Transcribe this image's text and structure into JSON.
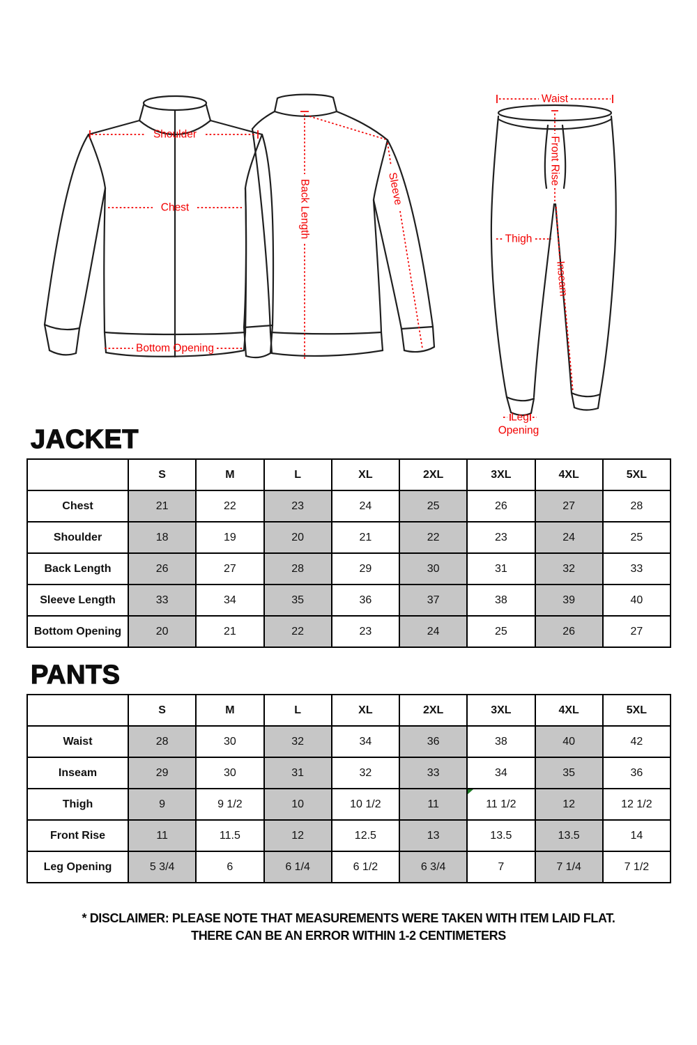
{
  "colors": {
    "measure_red": "#f20000",
    "outline_black": "#1f1f1f",
    "shaded_cell_gray": "#c6c6c6",
    "artifact_green": "#1f7a27"
  },
  "diagram": {
    "jacket_front": {
      "shoulder": "Shoulder",
      "chest": "Chest",
      "bottom_opening": "Bottom Opening"
    },
    "jacket_back": {
      "back_length": "Back Length",
      "sleeve": "Sleeve"
    },
    "pants": {
      "waist": "Waist",
      "front_rise": "Front Rise",
      "thigh": "Thigh",
      "inseam": "Inseam",
      "leg_opening_line1": "Leg",
      "leg_opening_line2": "Opening"
    }
  },
  "table_style": {
    "label_col_width": 145,
    "shaded_columns": [
      0,
      2,
      4,
      6
    ]
  },
  "jacket_section": {
    "title": "JACKET",
    "columns": [
      "S",
      "M",
      "L",
      "XL",
      "2XL",
      "3XL",
      "4XL",
      "5XL"
    ],
    "rows": [
      {
        "label": "Chest",
        "values": [
          "21",
          "22",
          "23",
          "24",
          "25",
          "26",
          "27",
          "28"
        ]
      },
      {
        "label": "Shoulder",
        "values": [
          "18",
          "19",
          "20",
          "21",
          "22",
          "23",
          "24",
          "25"
        ]
      },
      {
        "label": "Back Length",
        "values": [
          "26",
          "27",
          "28",
          "29",
          "30",
          "31",
          "32",
          "33"
        ]
      },
      {
        "label": "Sleeve Length",
        "values": [
          "33",
          "34",
          "35",
          "36",
          "37",
          "38",
          "39",
          "40"
        ]
      },
      {
        "label": "Bottom Opening",
        "values": [
          "20",
          "21",
          "22",
          "23",
          "24",
          "25",
          "26",
          "27"
        ]
      }
    ]
  },
  "pants_section": {
    "title": "PANTS",
    "columns": [
      "S",
      "M",
      "L",
      "XL",
      "2XL",
      "3XL",
      "4XL",
      "5XL"
    ],
    "rows": [
      {
        "label": "Waist",
        "values": [
          "28",
          "30",
          "32",
          "34",
          "36",
          "38",
          "40",
          "42"
        ]
      },
      {
        "label": "Inseam",
        "values": [
          "29",
          "30",
          "31",
          "32",
          "33",
          "34",
          "35",
          "36"
        ]
      },
      {
        "label": "Thigh",
        "values": [
          "9",
          "9 1/2",
          "10",
          "10 1/2",
          "11",
          "11 1/2",
          "12",
          "12 1/2"
        ]
      },
      {
        "label": "Front Rise",
        "values": [
          "11",
          "11.5",
          "12",
          "12.5",
          "13",
          "13.5",
          "13.5",
          "14"
        ]
      },
      {
        "label": "Leg Opening",
        "values": [
          "5 3/4",
          "6",
          "6 1/4",
          "6 1/2",
          "6 3/4",
          "7",
          "7 1/4",
          "7 1/2"
        ]
      }
    ]
  },
  "disclaimer": {
    "line1": "* DISCLAIMER: PLEASE NOTE THAT MEASUREMENTS WERE TAKEN WITH ITEM LAID FLAT.",
    "line2": "THERE CAN BE AN ERROR WITHIN 1-2 CENTIMETERS"
  }
}
